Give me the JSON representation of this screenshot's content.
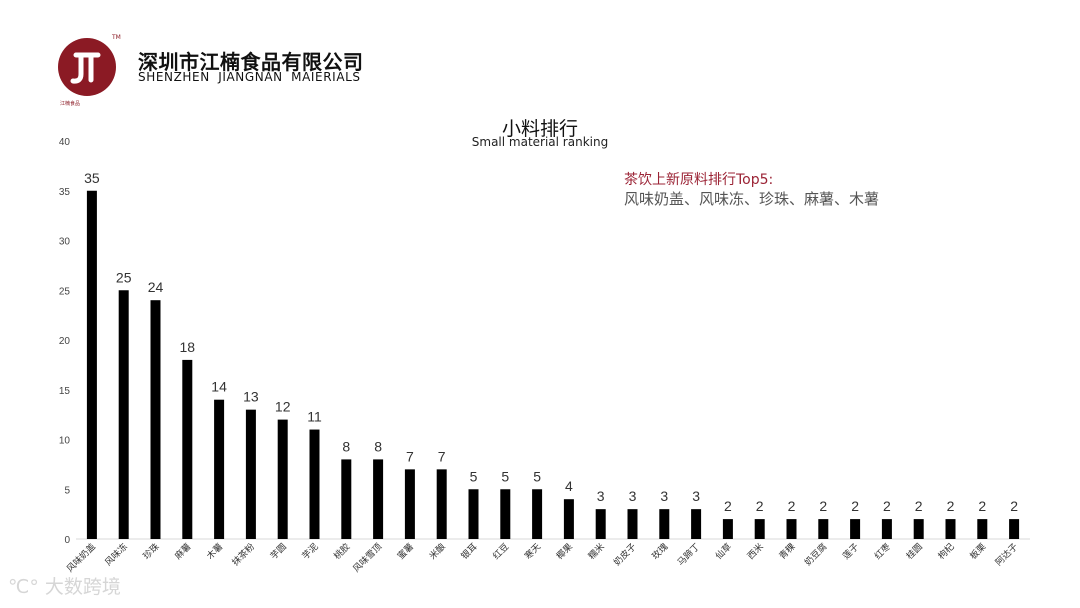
{
  "header": {
    "company_cn": "深圳市江楠食品有限公司",
    "company_en": "SHENZHEN JIANGNAN MAIERIALS",
    "logo_glyph": "JN",
    "logo_tm": "TM",
    "logo_sub": "江楠食品"
  },
  "note": {
    "title": "茶饮上新原料排行Top5:",
    "body": "风味奶盖、风味冻、珍珠、麻薯、木薯"
  },
  "watermark": "大数跨境",
  "colors": {
    "bar": "#000000",
    "brand": "#8b1a24",
    "note_title": "#9b2335",
    "note_body": "#555555"
  },
  "chart_data": {
    "type": "bar",
    "title": "小料排行",
    "subtitle": "Small material ranking",
    "categories": [
      "风味奶盖",
      "风味冻",
      "珍珠",
      "麻薯",
      "木薯",
      "抹茶粉",
      "芋圆",
      "芋泥",
      "桃胶",
      "风味雪顶",
      "蜜薯",
      "米酿",
      "银耳",
      "红豆",
      "寒天",
      "椰果",
      "糯米",
      "奶皮子",
      "玫瑰",
      "马蹄丁",
      "仙草",
      "西米",
      "青稞",
      "奶豆腐",
      "莲子",
      "红枣",
      "桂圆",
      "枸杞",
      "板栗",
      "阿达子"
    ],
    "values": [
      35,
      25,
      24,
      18,
      14,
      13,
      12,
      11,
      8,
      8,
      7,
      7,
      5,
      5,
      5,
      4,
      3,
      3,
      3,
      3,
      2,
      2,
      2,
      2,
      2,
      2,
      2,
      2,
      2,
      2
    ],
    "ylim": [
      0,
      40
    ],
    "yticks": [
      0,
      5,
      10,
      15,
      20,
      25,
      30,
      35,
      40
    ],
    "grid": false,
    "data_labels": true
  }
}
